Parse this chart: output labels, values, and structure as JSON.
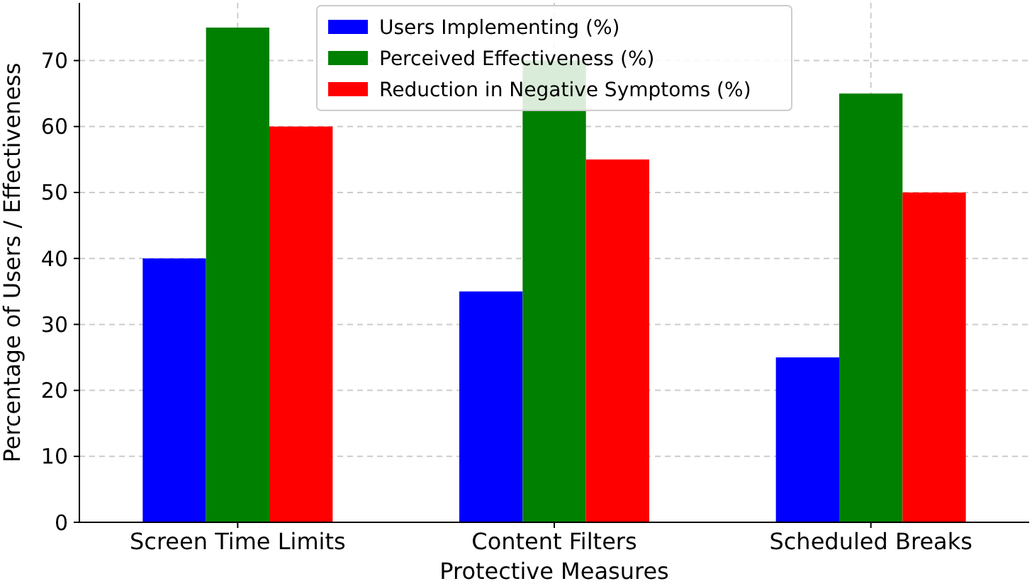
{
  "chart_data": {
    "type": "bar",
    "xlabel": "Protective Measures",
    "ylabel": "Percentage of Users / Effectiveness",
    "categories": [
      "Screen Time Limits",
      "Content Filters",
      "Scheduled Breaks"
    ],
    "series": [
      {
        "name": "Users Implementing (%)",
        "color": "#0000ff",
        "values": [
          40,
          35,
          25
        ]
      },
      {
        "name": "Perceived Effectiveness (%)",
        "color": "#008000",
        "values": [
          75,
          70,
          65
        ]
      },
      {
        "name": "Reduction in Negative Symptoms (%)",
        "color": "#ff0000",
        "values": [
          60,
          55,
          50
        ]
      }
    ],
    "ylim": [
      0,
      78.75
    ],
    "yticks": [
      0,
      10,
      20,
      30,
      40,
      50,
      60,
      70
    ],
    "grid": true,
    "legend": "top"
  }
}
